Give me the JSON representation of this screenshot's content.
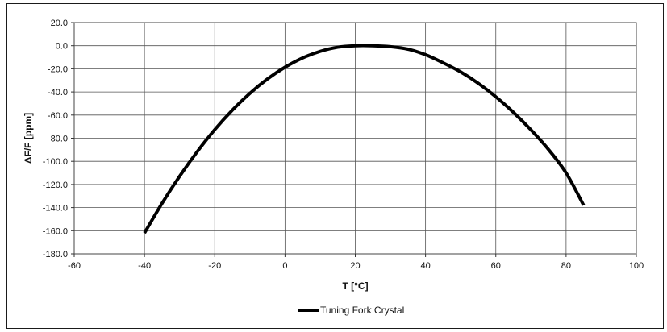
{
  "chart_data": {
    "type": "line",
    "title": "",
    "xlabel": "T [°C]",
    "ylabel": "ΔF/F [ppm]",
    "xlim": [
      -60,
      100
    ],
    "ylim": [
      -180,
      20
    ],
    "x_ticks": [
      -60,
      -40,
      -20,
      0,
      20,
      40,
      60,
      80,
      100
    ],
    "y_ticks": [
      20,
      0,
      -20,
      -40,
      -60,
      -80,
      -100,
      -120,
      -140,
      -160,
      -180
    ],
    "x_tick_labels": [
      "-60",
      "-40",
      "-20",
      "0",
      "20",
      "40",
      "60",
      "80",
      "100"
    ],
    "y_tick_labels": [
      "20.0",
      "0.0",
      "-20.0",
      "-40.0",
      "-60.0",
      "-80.0",
      "-100.0",
      "-120.0",
      "-140.0",
      "-160.0",
      "-180.0"
    ],
    "grid": true,
    "legend_position": "bottom-center",
    "series": [
      {
        "name": "Tuning Fork Crystal",
        "color": "#000000",
        "x": [
          -40,
          -35,
          -30,
          -25,
          -20,
          -15,
          -10,
          -5,
          0,
          5,
          10,
          15,
          20,
          25,
          30,
          35,
          40,
          45,
          50,
          55,
          60,
          65,
          70,
          75,
          80,
          85
        ],
        "y": [
          -162.0,
          -136.3,
          -112.9,
          -91.7,
          -72.6,
          -55.8,
          -41.2,
          -28.8,
          -18.6,
          -10.6,
          -4.9,
          -1.3,
          0.0,
          0.0,
          -0.8,
          -3.0,
          -7.8,
          -14.8,
          -22.7,
          -32.5,
          -44.2,
          -57.6,
          -72.8,
          -89.8,
          -110.0,
          -138.0
        ]
      }
    ]
  }
}
